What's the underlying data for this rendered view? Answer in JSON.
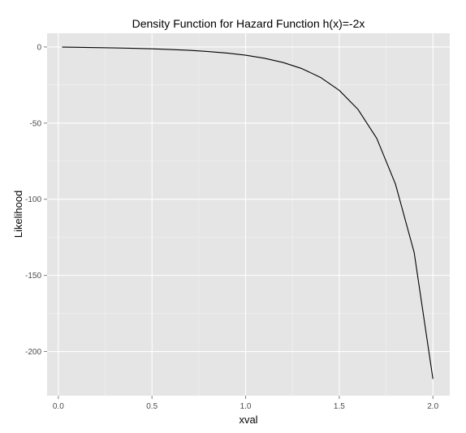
{
  "chart_data": {
    "type": "line",
    "title": "Density Function for Hazard Function h(x)=-2x",
    "xlabel": "xval",
    "ylabel": "Likelihood",
    "xlim": [
      -0.06,
      2.09
    ],
    "ylim": [
      -229,
      9
    ],
    "x_ticks": [
      0.0,
      0.5,
      1.0,
      1.5,
      2.0
    ],
    "x_tick_labels": [
      "0.0",
      "0.5",
      "1.0",
      "1.5",
      "2.0"
    ],
    "y_ticks": [
      0,
      -50,
      -100,
      -150,
      -200
    ],
    "y_tick_labels": [
      "0",
      "-50",
      "-100",
      "-150",
      "-200"
    ],
    "grid": true,
    "legend": "none",
    "colors": {
      "panel": "#e5e5e5",
      "grid": "#ffffff",
      "line": "#000000",
      "tick": "#4d4d4d"
    },
    "series": [
      {
        "x": [
          0.02,
          0.1,
          0.2,
          0.3,
          0.4,
          0.5,
          0.6,
          0.7,
          0.8,
          0.9,
          1.0,
          1.1,
          1.2,
          1.3,
          1.4,
          1.5,
          1.6,
          1.7,
          1.8,
          1.9,
          2.0
        ],
        "values": [
          -0.06,
          -0.2,
          -0.4,
          -0.6,
          -0.9,
          -1.2,
          -1.7,
          -2.2,
          -3.0,
          -4.0,
          -5.4,
          -7.4,
          -10.2,
          -14.2,
          -20.0,
          -28.5,
          -41.0,
          -60.0,
          -90.0,
          -135.0,
          -218.0
        ]
      }
    ]
  }
}
